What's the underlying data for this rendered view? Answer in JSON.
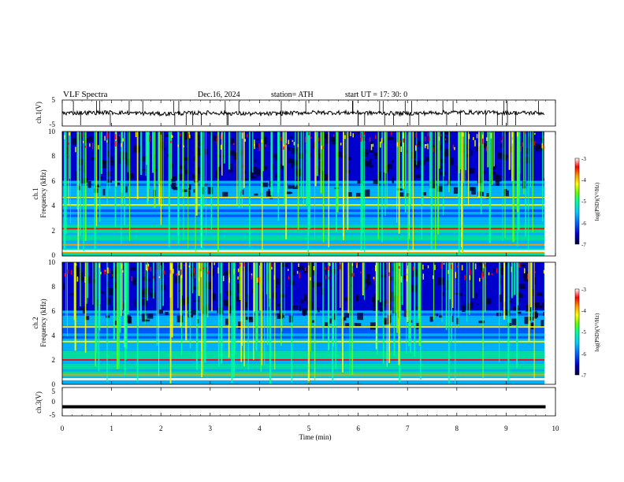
{
  "header": {
    "title": "VLF  Spectra",
    "date": "Dec.16, 2024",
    "station": "station= ATH",
    "start": "start  UT  =    17: 30: 0"
  },
  "colors": {
    "spectrogram_scale": [
      "#000033",
      "#0000cc",
      "#0066ff",
      "#00ccff",
      "#00ff99",
      "#66ff00",
      "#ffff00",
      "#ff9900",
      "#ff0000",
      "#ffffff"
    ],
    "trace": "#000000"
  },
  "chart_data": [
    {
      "type": "line",
      "panel": "ch1-waveform",
      "ylabel": "ch.1(V)",
      "ylim": [
        -5,
        5
      ],
      "yticks": [
        "5",
        "-5"
      ],
      "xlim": [
        0,
        10
      ],
      "series": [
        {
          "x": [
            0,
            1,
            2,
            3,
            4,
            5,
            6,
            7,
            8,
            9,
            9.8
          ],
          "values": [
            0,
            0.2,
            -0.3,
            0.1,
            -0.4,
            0.2,
            0.1,
            -0.2,
            0.3,
            0.1,
            0
          ]
        }
      ]
    },
    {
      "type": "heatmap",
      "panel": "ch1-spectrogram",
      "ylabel": "ch.1",
      "ylabel2": "Frequency (kHz)",
      "ylim": [
        0,
        10
      ],
      "yticks": [
        "10",
        "8",
        "6",
        "4",
        "2",
        "0"
      ],
      "xlim": [
        0,
        10
      ],
      "colorbar": {
        "label": "log(PSD)(V²/Hz)",
        "range": [
          -7,
          -3
        ],
        "ticks": [
          "-3",
          "-4",
          "-5",
          "-6",
          "-7"
        ]
      },
      "bands_khz": [
        0.3,
        0.9,
        2.2,
        4.1,
        4.7
      ]
    },
    {
      "type": "heatmap",
      "panel": "ch2-spectrogram",
      "ylabel": "ch.2",
      "ylabel2": "Frequency (kHz)",
      "ylim": [
        0,
        10
      ],
      "yticks": [
        "10",
        "8",
        "6",
        "4",
        "2",
        "0"
      ],
      "xlim": [
        0,
        10
      ],
      "colorbar": {
        "label": "log(PSD)(V²/Hz)",
        "range": [
          -7,
          -3
        ],
        "ticks": [
          "-3",
          "-4",
          "-5",
          "-6",
          "-7"
        ]
      },
      "bands_khz": [
        0.8,
        2.0,
        3.5,
        4.7
      ]
    },
    {
      "type": "line",
      "panel": "ch3-waveform",
      "ylabel": "ch.3(V)",
      "ylim": [
        -5,
        5
      ],
      "yticks": [
        "5",
        "0",
        "-5"
      ],
      "xlim": [
        0,
        10
      ],
      "series": [
        {
          "x": [
            0,
            9.8
          ],
          "values": [
            -1.8,
            -1.8
          ]
        }
      ]
    }
  ],
  "xaxis": {
    "label": "Time (min)",
    "range": [
      0,
      10
    ],
    "ticks": [
      "0",
      "1",
      "2",
      "3",
      "4",
      "5",
      "6",
      "7",
      "8",
      "9",
      "10"
    ]
  }
}
